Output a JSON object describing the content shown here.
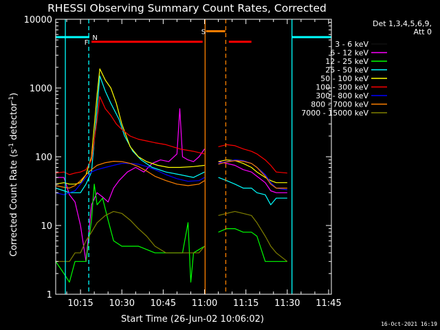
{
  "chart_data": {
    "type": "line",
    "title": "RHESSI Observing Summary Count Rates, Corrected",
    "xlabel": "Start Time (26-Jun-02 10:06:02)",
    "ylabel_main": "Corrected Count Rate (s",
    "ylabel_sup": "-1",
    "ylabel_mid": " detector",
    "ylabel_sup2": "-1",
    "ylabel_end": ")",
    "footer": "16-Oct-2021 16:19",
    "y_scale": "log",
    "ylim": [
      1,
      10000
    ],
    "xlim_minutes": [
      0,
      100
    ],
    "x_ticks": [
      {
        "label": "10:15",
        "m": 9
      },
      {
        "label": "10:30",
        "m": 24
      },
      {
        "label": "10:45",
        "m": 39
      },
      {
        "label": "11:00",
        "m": 54
      },
      {
        "label": "11:15",
        "m": 69
      },
      {
        "label": "11:30",
        "m": 84
      },
      {
        "label": "11:45",
        "m": 99
      }
    ],
    "y_ticks": [
      {
        "label": "1",
        "v": 1
      },
      {
        "label": "10",
        "v": 10
      },
      {
        "label": "100",
        "v": 100
      },
      {
        "label": "1000",
        "v": 1000
      },
      {
        "label": "10000",
        "v": 10000
      }
    ],
    "legend": {
      "header": [
        "Det 1,3,4,5,6,9,",
        "Att 0"
      ],
      "position": "right"
    },
    "series": [
      {
        "name": "3 - 6 keV",
        "color": "#000000",
        "pts": [
          [
            0,
            55
          ],
          [
            3,
            55
          ],
          [
            5,
            32
          ],
          [
            7,
            30
          ],
          [
            9,
            28
          ],
          [
            11,
            10
          ],
          [
            13,
            2
          ],
          [
            15,
            8
          ],
          [
            17,
            14
          ],
          [
            20,
            25
          ],
          [
            23,
            30
          ],
          [
            26,
            35
          ],
          [
            29,
            38
          ],
          [
            32,
            45
          ],
          [
            35,
            60
          ],
          [
            38,
            75
          ],
          [
            41,
            90
          ],
          [
            44,
            110
          ],
          [
            46,
            125
          ],
          [
            48,
            120
          ],
          [
            50,
            115
          ],
          [
            52,
            100
          ],
          [
            54,
            95
          ],
          [
            59,
            null
          ],
          [
            59,
            80
          ],
          [
            62,
            70
          ],
          [
            65,
            55
          ],
          [
            68,
            45
          ],
          [
            71,
            38
          ],
          [
            73,
            32
          ],
          [
            76,
            25
          ],
          [
            77,
            20
          ],
          [
            78,
            10
          ],
          [
            80,
            1
          ],
          [
            82,
            null
          ]
        ]
      },
      {
        "name": "6 - 12 keV",
        "color": "#ff00ff",
        "pts": [
          [
            0,
            50
          ],
          [
            3,
            50
          ],
          [
            5,
            28
          ],
          [
            7,
            22
          ],
          [
            9,
            10
          ],
          [
            11,
            3
          ],
          [
            13,
            20
          ],
          [
            15,
            30
          ],
          [
            17,
            26
          ],
          [
            19,
            22
          ],
          [
            21,
            35
          ],
          [
            23,
            45
          ],
          [
            26,
            60
          ],
          [
            29,
            70
          ],
          [
            32,
            60
          ],
          [
            35,
            80
          ],
          [
            38,
            90
          ],
          [
            41,
            85
          ],
          [
            44,
            110
          ],
          [
            45,
            500
          ],
          [
            46,
            100
          ],
          [
            48,
            90
          ],
          [
            50,
            85
          ],
          [
            52,
            100
          ],
          [
            54,
            130
          ],
          [
            59,
            null
          ],
          [
            59,
            85
          ],
          [
            62,
            80
          ],
          [
            65,
            75
          ],
          [
            68,
            65
          ],
          [
            71,
            60
          ],
          [
            73,
            52
          ],
          [
            76,
            42
          ],
          [
            78,
            32
          ],
          [
            80,
            30
          ],
          [
            84,
            30
          ]
        ]
      },
      {
        "name": "12 - 25 keV",
        "color": "#00ff00",
        "pts": [
          [
            0,
            3
          ],
          [
            3,
            2
          ],
          [
            5,
            1.5
          ],
          [
            7,
            3
          ],
          [
            9,
            3
          ],
          [
            11,
            3
          ],
          [
            13,
            12
          ],
          [
            14,
            40
          ],
          [
            15,
            20
          ],
          [
            17,
            25
          ],
          [
            19,
            12
          ],
          [
            21,
            6
          ],
          [
            24,
            5
          ],
          [
            30,
            5
          ],
          [
            36,
            4
          ],
          [
            42,
            4
          ],
          [
            46,
            4
          ],
          [
            48,
            11
          ],
          [
            49,
            1.5
          ],
          [
            50,
            4
          ],
          [
            54,
            5
          ],
          [
            59,
            null
          ],
          [
            59,
            8
          ],
          [
            62,
            9
          ],
          [
            65,
            9
          ],
          [
            68,
            8
          ],
          [
            71,
            8
          ],
          [
            73,
            7
          ],
          [
            76,
            3
          ],
          [
            78,
            3
          ],
          [
            80,
            3
          ],
          [
            84,
            3
          ]
        ]
      },
      {
        "name": "25 - 50 keV",
        "color": "#00ffff",
        "pts": [
          [
            0,
            35
          ],
          [
            3,
            32
          ],
          [
            5,
            30
          ],
          [
            7,
            30
          ],
          [
            9,
            30
          ],
          [
            11,
            40
          ],
          [
            13,
            60
          ],
          [
            15,
            500
          ],
          [
            16,
            1500
          ],
          [
            18,
            900
          ],
          [
            20,
            600
          ],
          [
            23,
            350
          ],
          [
            25,
            200
          ],
          [
            28,
            120
          ],
          [
            31,
            90
          ],
          [
            35,
            70
          ],
          [
            40,
            60
          ],
          [
            45,
            55
          ],
          [
            50,
            50
          ],
          [
            54,
            60
          ],
          [
            59,
            null
          ],
          [
            59,
            50
          ],
          [
            62,
            45
          ],
          [
            65,
            40
          ],
          [
            68,
            35
          ],
          [
            71,
            35
          ],
          [
            73,
            30
          ],
          [
            76,
            28
          ],
          [
            78,
            20
          ],
          [
            80,
            25
          ],
          [
            84,
            25
          ]
        ]
      },
      {
        "name": "50 - 100 keV",
        "color": "#ffff00",
        "pts": [
          [
            0,
            40
          ],
          [
            3,
            42
          ],
          [
            5,
            40
          ],
          [
            7,
            40
          ],
          [
            9,
            42
          ],
          [
            11,
            55
          ],
          [
            13,
            100
          ],
          [
            15,
            800
          ],
          [
            16,
            1900
          ],
          [
            18,
            1300
          ],
          [
            20,
            1000
          ],
          [
            22,
            600
          ],
          [
            24,
            300
          ],
          [
            27,
            140
          ],
          [
            30,
            100
          ],
          [
            33,
            85
          ],
          [
            37,
            75
          ],
          [
            41,
            70
          ],
          [
            45,
            70
          ],
          [
            50,
            72
          ],
          [
            54,
            75
          ],
          [
            59,
            null
          ],
          [
            59,
            85
          ],
          [
            62,
            90
          ],
          [
            65,
            88
          ],
          [
            68,
            80
          ],
          [
            71,
            70
          ],
          [
            73,
            60
          ],
          [
            76,
            50
          ],
          [
            78,
            45
          ],
          [
            80,
            42
          ],
          [
            84,
            42
          ]
        ]
      },
      {
        "name": "100 - 300 keV",
        "color": "#ff0000",
        "pts": [
          [
            0,
            58
          ],
          [
            3,
            60
          ],
          [
            5,
            55
          ],
          [
            7,
            58
          ],
          [
            9,
            60
          ],
          [
            11,
            65
          ],
          [
            13,
            90
          ],
          [
            15,
            350
          ],
          [
            16,
            750
          ],
          [
            18,
            500
          ],
          [
            20,
            400
          ],
          [
            22,
            300
          ],
          [
            24,
            250
          ],
          [
            27,
            200
          ],
          [
            30,
            180
          ],
          [
            33,
            170
          ],
          [
            36,
            160
          ],
          [
            40,
            150
          ],
          [
            45,
            130
          ],
          [
            50,
            120
          ],
          [
            54,
            110
          ],
          [
            59,
            null
          ],
          [
            59,
            140
          ],
          [
            62,
            150
          ],
          [
            65,
            145
          ],
          [
            68,
            130
          ],
          [
            71,
            120
          ],
          [
            73,
            110
          ],
          [
            76,
            90
          ],
          [
            78,
            75
          ],
          [
            80,
            60
          ],
          [
            84,
            58
          ]
        ]
      },
      {
        "name": "300 - 800 keV",
        "color": "#0000ff",
        "pts": [
          [
            0,
            30
          ],
          [
            3,
            28
          ],
          [
            5,
            30
          ],
          [
            7,
            32
          ],
          [
            9,
            40
          ],
          [
            11,
            50
          ],
          [
            13,
            60
          ],
          [
            15,
            65
          ],
          [
            18,
            70
          ],
          [
            21,
            75
          ],
          [
            24,
            80
          ],
          [
            27,
            80
          ],
          [
            30,
            78
          ],
          [
            33,
            72
          ],
          [
            36,
            65
          ],
          [
            40,
            55
          ],
          [
            44,
            48
          ],
          [
            48,
            44
          ],
          [
            52,
            45
          ],
          [
            54,
            50
          ],
          [
            59,
            null
          ],
          [
            59,
            80
          ],
          [
            62,
            85
          ],
          [
            65,
            90
          ],
          [
            68,
            88
          ],
          [
            71,
            80
          ],
          [
            73,
            70
          ],
          [
            76,
            55
          ],
          [
            78,
            42
          ],
          [
            80,
            35
          ],
          [
            84,
            33
          ]
        ]
      },
      {
        "name": "800 - 7000 keV",
        "color": "#ff8000",
        "pts": [
          [
            0,
            38
          ],
          [
            3,
            36
          ],
          [
            5,
            35
          ],
          [
            7,
            38
          ],
          [
            9,
            45
          ],
          [
            11,
            55
          ],
          [
            13,
            65
          ],
          [
            15,
            75
          ],
          [
            18,
            82
          ],
          [
            21,
            86
          ],
          [
            24,
            85
          ],
          [
            27,
            80
          ],
          [
            30,
            72
          ],
          [
            33,
            62
          ],
          [
            36,
            52
          ],
          [
            40,
            45
          ],
          [
            44,
            40
          ],
          [
            48,
            38
          ],
          [
            52,
            40
          ],
          [
            54,
            45
          ],
          [
            59,
            null
          ],
          [
            59,
            78
          ],
          [
            62,
            84
          ],
          [
            65,
            88
          ],
          [
            68,
            86
          ],
          [
            71,
            80
          ],
          [
            73,
            70
          ],
          [
            76,
            52
          ],
          [
            78,
            40
          ],
          [
            80,
            35
          ],
          [
            84,
            35
          ]
        ]
      },
      {
        "name": "7000 - 15000 keV",
        "color": "#808000",
        "pts": [
          [
            0,
            3
          ],
          [
            3,
            3
          ],
          [
            5,
            3
          ],
          [
            7,
            4
          ],
          [
            9,
            4
          ],
          [
            11,
            6
          ],
          [
            13,
            8
          ],
          [
            15,
            11
          ],
          [
            18,
            14
          ],
          [
            21,
            16
          ],
          [
            24,
            15
          ],
          [
            27,
            12
          ],
          [
            30,
            9
          ],
          [
            33,
            7
          ],
          [
            36,
            5
          ],
          [
            40,
            4
          ],
          [
            44,
            4
          ],
          [
            48,
            4
          ],
          [
            52,
            4
          ],
          [
            54,
            5
          ],
          [
            59,
            null
          ],
          [
            59,
            14
          ],
          [
            62,
            15
          ],
          [
            65,
            16
          ],
          [
            68,
            15
          ],
          [
            71,
            14
          ],
          [
            73,
            11
          ],
          [
            76,
            7
          ],
          [
            78,
            5
          ],
          [
            80,
            4
          ],
          [
            84,
            3
          ]
        ]
      }
    ],
    "verticals": [
      {
        "m": 3.5,
        "color": "#00ffff",
        "style": "solid"
      },
      {
        "m": 12,
        "color": "#00ffff",
        "style": "dashed"
      },
      {
        "m": 54.2,
        "color": "#ff8000",
        "style": "solid"
      },
      {
        "m": 61.7,
        "color": "#ff8000",
        "style": "dashed"
      },
      {
        "m": 85.7,
        "color": "#00ffff",
        "style": "solid"
      },
      {
        "m": 101,
        "color": "#00ffff",
        "style": "dashed"
      }
    ],
    "flags": [
      {
        "label": "N",
        "color": "#00ffff",
        "m0": -7,
        "m1": 12.2,
        "v": 5500,
        "label_m": 13.3
      },
      {
        "label": "N",
        "color": "#00ffff",
        "m0": 85.7,
        "m1": 101,
        "v": 5500,
        "label_m": null
      },
      {
        "label": "F",
        "color": "#ff0000",
        "m0": 13,
        "m1": 53.3,
        "v": 4700,
        "label_m": 10.4
      },
      {
        "label": "F",
        "color": "#ff0000",
        "m0": 62.8,
        "m1": 71,
        "v": 4700,
        "label_m": null
      },
      {
        "label": "S",
        "color": "#ff8000",
        "m0": 54.5,
        "m1": 61.5,
        "v": 6700,
        "label_m": 52.8
      }
    ]
  }
}
